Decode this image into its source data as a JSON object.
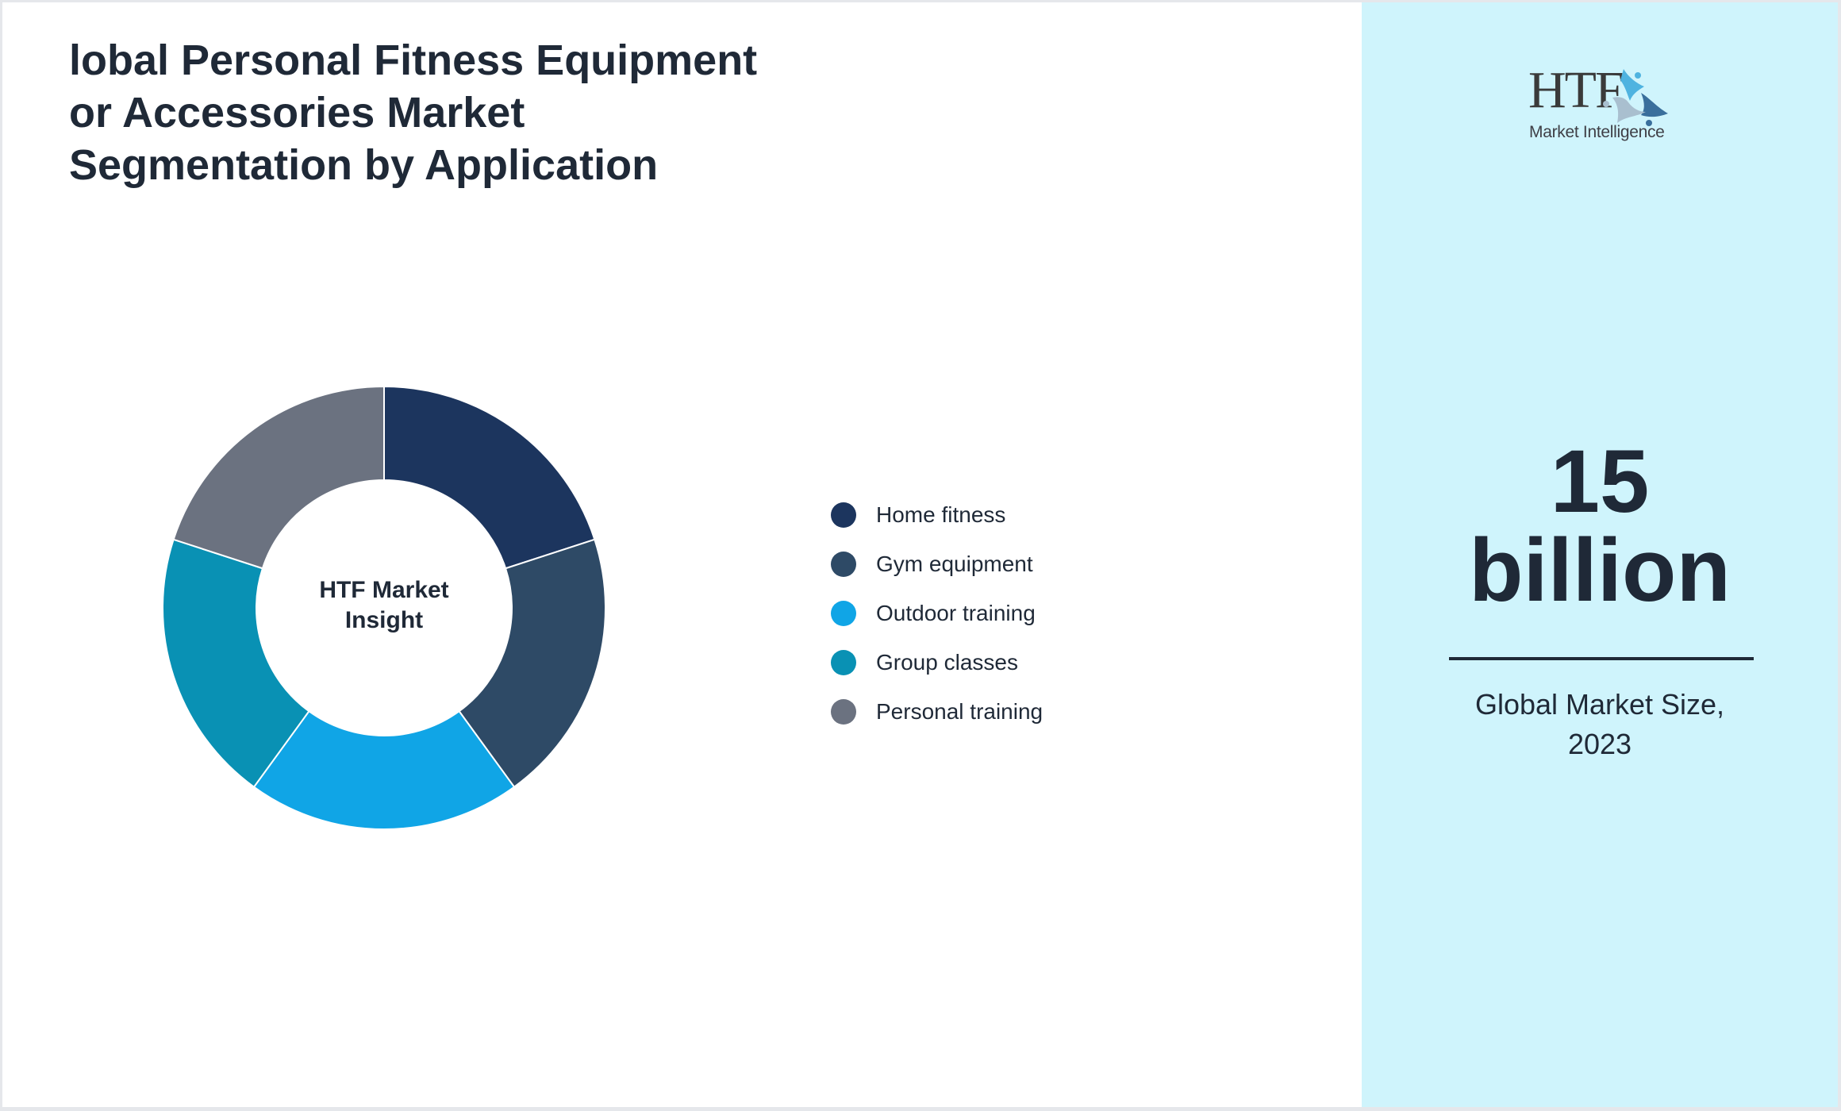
{
  "title": {
    "lines": [
      "lobal Personal Fitness Equipment",
      "or Accessories Market",
      "Segmentation by Application"
    ]
  },
  "donut": {
    "center_label_lines": [
      "HTF Market",
      "Insight"
    ]
  },
  "legend": {
    "items": [
      {
        "label": "Home fitness",
        "color": "#1c355e"
      },
      {
        "label": "Gym equipment",
        "color": "#2e4a66"
      },
      {
        "label": "Outdoor training",
        "color": "#10a5e6"
      },
      {
        "label": "Group classes",
        "color": "#0991b4"
      },
      {
        "label": "Personal training",
        "color": "#6b7280"
      }
    ]
  },
  "side_panel": {
    "logo": {
      "brand": "HTF",
      "tagline": "Market Intelligence",
      "icon": "people-circle-logo-icon"
    },
    "kpi_value_lines": [
      "15",
      "billion"
    ],
    "kpi_caption_lines": [
      "Global Market Size,",
      "2023"
    ],
    "background": "#cff4fc"
  },
  "chart_data": {
    "type": "pie",
    "subtype": "donut",
    "title": "Global Personal Fitness Equipment or Accessories Market Segmentation by Application",
    "center_text": "HTF Market Insight",
    "categories": [
      "Home fitness",
      "Gym equipment",
      "Outdoor training",
      "Group classes",
      "Personal training"
    ],
    "values": [
      20,
      20,
      20,
      20,
      20
    ],
    "colors": [
      "#1c355e",
      "#2e4a66",
      "#10a5e6",
      "#0991b4",
      "#6b7280"
    ],
    "start_angle_deg": 0,
    "direction": "clockwise",
    "legend_position": "right",
    "annotation": {
      "market_size": "15 billion",
      "label": "Global Market Size, 2023"
    }
  }
}
